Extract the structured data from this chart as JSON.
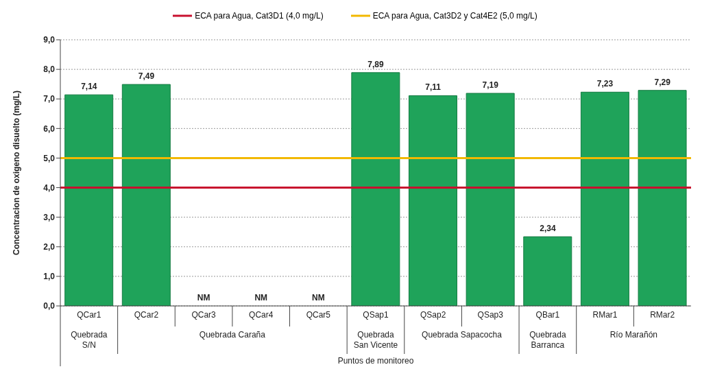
{
  "chart_data": {
    "type": "bar",
    "xlabel": "Puntos de monitoreo",
    "ylabel": "Concentracion de oxigeno disuelto (mg/L)",
    "categories": [
      "QCar1",
      "QCar2",
      "QCar3",
      "QCar4",
      "QCar5",
      "QSap1",
      "QSap2",
      "QSap3",
      "QBar1",
      "RMar1",
      "RMar2"
    ],
    "values": [
      7.14,
      7.49,
      null,
      null,
      null,
      7.89,
      7.11,
      7.19,
      2.34,
      7.23,
      7.29
    ],
    "value_labels": [
      "7,14",
      "7,49",
      "NM",
      "NM",
      "NM",
      "7,89",
      "7,11",
      "7,19",
      "2,34",
      "7,23",
      "7,29"
    ],
    "color": "#1fa35a",
    "ylim": [
      0,
      9
    ],
    "yticks": [
      {
        "value": 0,
        "label": "0,0"
      },
      {
        "value": 1,
        "label": "1,0"
      },
      {
        "value": 2,
        "label": "2,0"
      },
      {
        "value": 3,
        "label": "3,0"
      },
      {
        "value": 4,
        "label": "4,0"
      },
      {
        "value": 5,
        "label": "5,0"
      },
      {
        "value": 6,
        "label": "6,0"
      },
      {
        "value": 7,
        "label": "7,0"
      },
      {
        "value": 8,
        "label": "8,0"
      },
      {
        "value": 9,
        "label": "9,0"
      }
    ],
    "grid": "y",
    "legend": "top",
    "ref_lines": [
      {
        "axis": "y",
        "value": 4,
        "label": "ECA para Agua, Cat3D1 (4,0 mg/L)",
        "color": "#c8102e"
      },
      {
        "axis": "y",
        "value": 5,
        "label": "ECA para Agua, Cat3D2 y Cat4E2 (5,0 mg/L)",
        "color": "#f2b800"
      }
    ],
    "annotations": [
      "Quebrada S/N",
      "Quebrada Caraña",
      "Quebrada San Vicente",
      "Quebrada Sapacocha",
      "Quebrada Barranca",
      "Río Marañón"
    ]
  }
}
